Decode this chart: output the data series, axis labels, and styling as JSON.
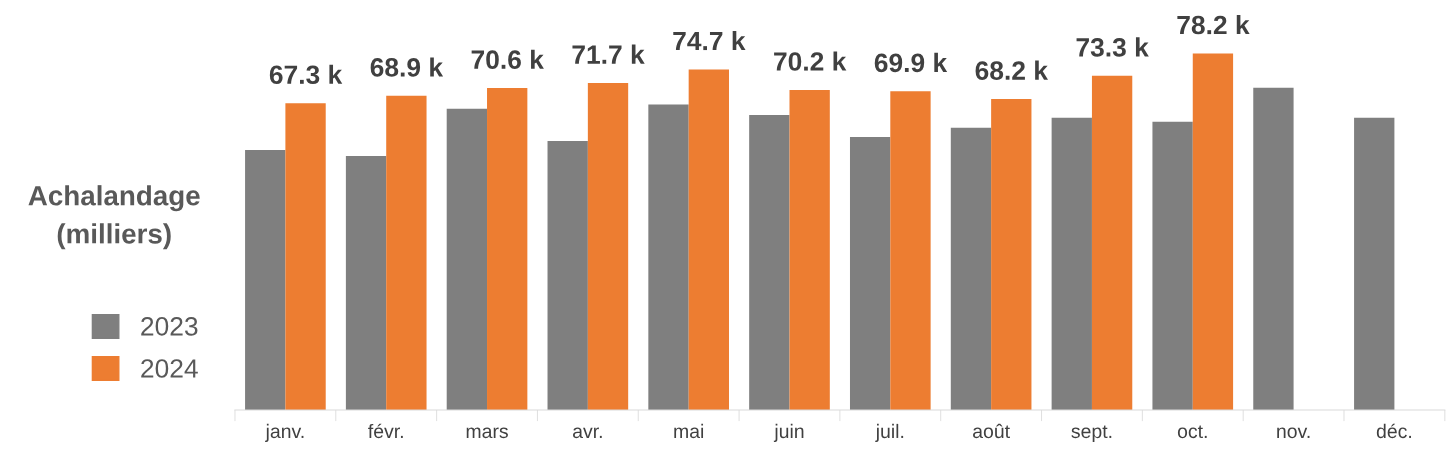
{
  "chart_data": {
    "type": "bar",
    "ylabel": "Achalandage\n(milliers)",
    "categories": [
      "janv.",
      "févr.",
      "mars",
      "avr.",
      "mai",
      "juin",
      "juil.",
      "août",
      "sept.",
      "oct.",
      "nov.",
      "déc."
    ],
    "series": [
      {
        "name": "2023",
        "color": "#7f7f7f",
        "values": [
          57.0,
          55.7,
          66.1,
          59.0,
          67.0,
          64.7,
          59.9,
          61.9,
          64.1,
          63.2,
          70.7,
          64.1
        ]
      },
      {
        "name": "2024",
        "color": "#ed7d31",
        "values": [
          67.3,
          68.9,
          70.6,
          71.7,
          74.7,
          70.2,
          69.9,
          68.2,
          73.3,
          78.2,
          null,
          null
        ],
        "value_labels": [
          "67.3 k",
          "68.9 k",
          "70.6 k",
          "71.7 k",
          "74.7 k",
          "70.2 k",
          "69.9 k",
          "68.2 k",
          "73.3 k",
          "78.2 k",
          null,
          null
        ]
      }
    ],
    "tick_labels": "x",
    "legend": "left",
    "grid": false
  }
}
